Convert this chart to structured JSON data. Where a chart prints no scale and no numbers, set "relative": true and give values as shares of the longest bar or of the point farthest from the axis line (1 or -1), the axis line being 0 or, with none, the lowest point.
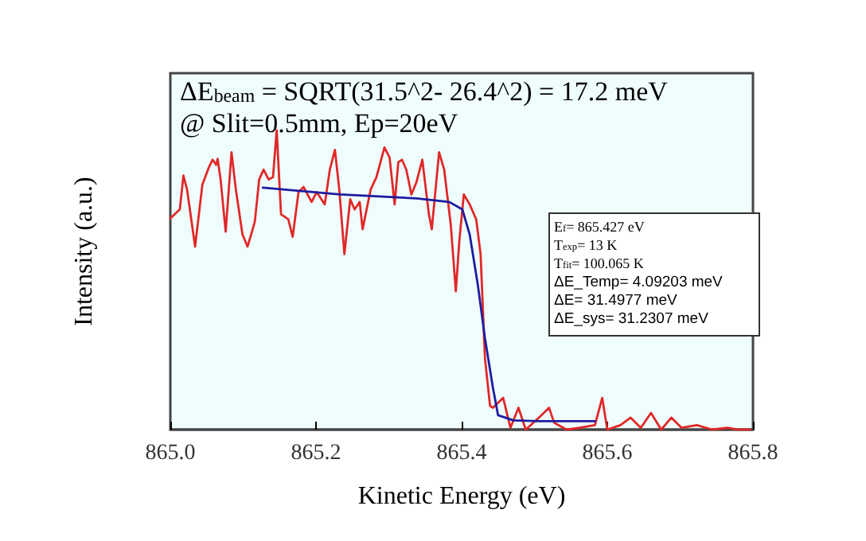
{
  "chart_data": {
    "type": "line",
    "xlabel": "Kinetic Energy (eV)",
    "ylabel": "Intensity (a.u.)",
    "relative": true,
    "xlim": [
      865.0,
      865.8
    ],
    "xticks": [
      {
        "value": 865.0,
        "label": "865.0"
      },
      {
        "value": 865.2,
        "label": "865.2"
      },
      {
        "value": 865.4,
        "label": "865.4"
      },
      {
        "value": 865.6,
        "label": "865.6"
      },
      {
        "value": 865.8,
        "label": "865.8"
      }
    ],
    "grid": false,
    "marker": "none",
    "line_style": "solid",
    "series": [
      {
        "color": "#e02828",
        "x": [
          865.0,
          865.006,
          865.013,
          865.018,
          865.023,
          865.034,
          865.044,
          865.053,
          865.058,
          865.063,
          865.065,
          865.069,
          865.076,
          865.084,
          865.09,
          865.099,
          865.106,
          865.111,
          865.116,
          865.122,
          865.128,
          865.135,
          865.141,
          865.146,
          865.152,
          865.162,
          865.168,
          865.176,
          865.183,
          865.194,
          865.201,
          865.212,
          865.219,
          865.226,
          865.232,
          865.239,
          865.247,
          865.253,
          865.26,
          865.264,
          865.275,
          865.283,
          865.294,
          865.301,
          865.308,
          865.313,
          865.318,
          865.324,
          865.331,
          865.338,
          865.346,
          865.355,
          865.359,
          865.369,
          865.376,
          865.385,
          865.392,
          865.397,
          865.403,
          865.411,
          865.42,
          865.426,
          865.432,
          865.439,
          865.443,
          865.457,
          865.467,
          865.478,
          865.488,
          865.506,
          865.52,
          865.527,
          865.544,
          865.562,
          865.583,
          865.593,
          865.6,
          865.618,
          865.632,
          865.646,
          865.66,
          865.674,
          865.688,
          865.702,
          865.723,
          865.744,
          865.765,
          865.779,
          865.796
        ],
        "values": [
          0.705,
          0.719,
          0.735,
          0.848,
          0.801,
          0.611,
          0.818,
          0.876,
          0.901,
          0.884,
          0.904,
          0.835,
          0.661,
          0.926,
          0.801,
          0.652,
          0.611,
          0.652,
          0.694,
          0.835,
          0.868,
          0.835,
          0.843,
          1.0,
          0.719,
          0.702,
          0.644,
          0.793,
          0.81,
          0.76,
          0.793,
          0.752,
          0.868,
          0.934,
          0.801,
          0.586,
          0.769,
          0.735,
          0.76,
          0.669,
          0.801,
          0.843,
          0.942,
          0.909,
          0.752,
          0.893,
          0.901,
          0.868,
          0.785,
          0.827,
          0.901,
          0.719,
          0.669,
          0.926,
          0.868,
          0.686,
          0.462,
          0.636,
          0.785,
          0.752,
          0.702,
          0.586,
          0.238,
          0.079,
          0.073,
          0.106,
          0.006,
          0.073,
          0.0,
          0.04,
          0.073,
          0.023,
          0.0,
          0.006,
          0.015,
          0.106,
          0.0,
          0.015,
          0.04,
          0.006,
          0.056,
          0.0,
          0.04,
          0.006,
          0.015,
          0.0,
          0.006,
          0.0,
          0.0
        ]
      },
      {
        "color": "#1c1ca0",
        "x": [
          865.127,
          865.233,
          865.338,
          865.383,
          865.401,
          865.411,
          865.422,
          865.432,
          865.443,
          865.45,
          865.471,
          865.506,
          865.583
        ],
        "values": [
          0.808,
          0.785,
          0.772,
          0.76,
          0.735,
          0.652,
          0.487,
          0.305,
          0.139,
          0.048,
          0.031,
          0.028,
          0.028
        ]
      }
    ],
    "annotations": [
      "ΔE$_{beam}$ = SQRT(31.5^2- 26.4^2) = 17.2 meV",
      "@ Slit=0.5mm, Ep=20eV",
      "E$_{f}$= 865.427 eV",
      "T$_{exp}$= 13 K",
      "T$_{fit}$= 100.065 K",
      "ΔE_Temp= 4.09203 meV",
      "ΔE= 31.4977 meV",
      "ΔE_sys= 31.2307 meV"
    ]
  }
}
